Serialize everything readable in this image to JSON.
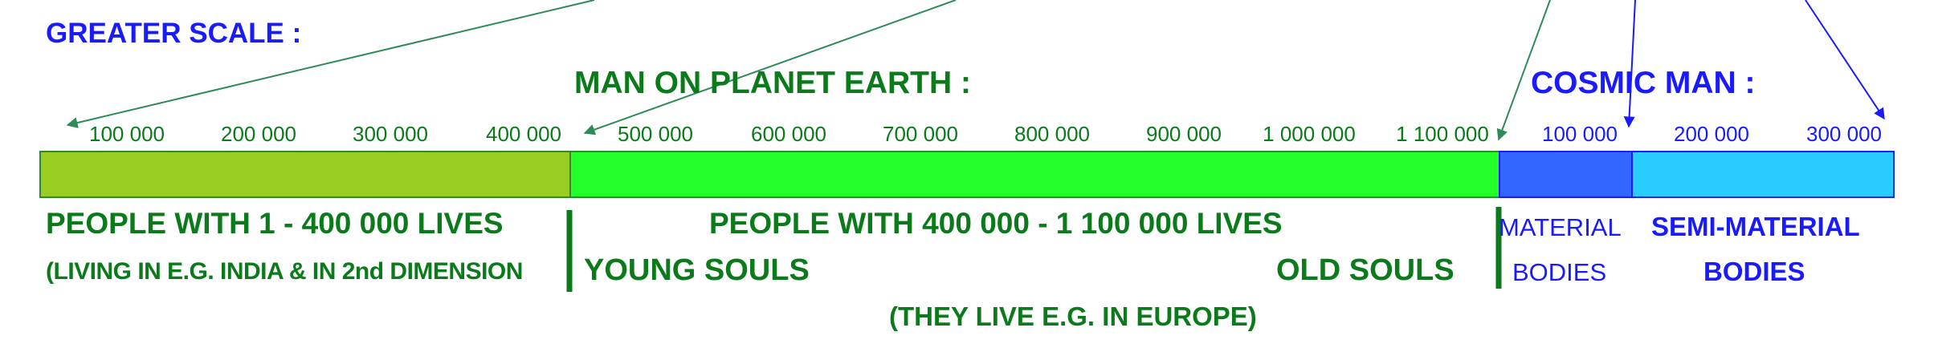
{
  "headers": {
    "greater_scale": "GREATER SCALE :",
    "man_on_earth": "MAN ON PLANET EARTH :",
    "cosmic_man": "COSMIC MAN :"
  },
  "ticks_earth": [
    "100 000",
    "200 000",
    "300 000",
    "400 000",
    "500 000",
    "600 000",
    "700 000",
    "800 000",
    "900 000",
    "1 000 000",
    "1 100 000"
  ],
  "ticks_cosmic": [
    "100 000",
    "200 000",
    "300 000"
  ],
  "segments": [
    {
      "name": "olive",
      "color": "#9acd22"
    },
    {
      "name": "green",
      "color": "#22ff2a"
    },
    {
      "name": "blue",
      "color": "#3366ff"
    },
    {
      "name": "cyan",
      "color": "#29ccff"
    }
  ],
  "labels": {
    "people_1_400k": "PEOPLE WITH 1 - 400 000 LIVES",
    "living_india": "(LIVING IN E.G. INDIA & IN 2nd DIMENSION",
    "people_400k_1100k": "PEOPLE WITH 400 000 - 1 100 000 LIVES",
    "young_souls": "YOUNG SOULS",
    "old_souls": "OLD SOULS",
    "live_europe": "(THEY LIVE E.G. IN EUROPE)",
    "material": "MATERIAL",
    "bodies_1": "BODIES",
    "semi_material": "SEMI-MATERIAL",
    "bodies_2": "BODIES"
  },
  "colors": {
    "text_blue": "#1a1aff",
    "text_green": "#0a7a1a",
    "arrow_green": "#2e8b57",
    "arrow_blue": "#1a1aff"
  }
}
